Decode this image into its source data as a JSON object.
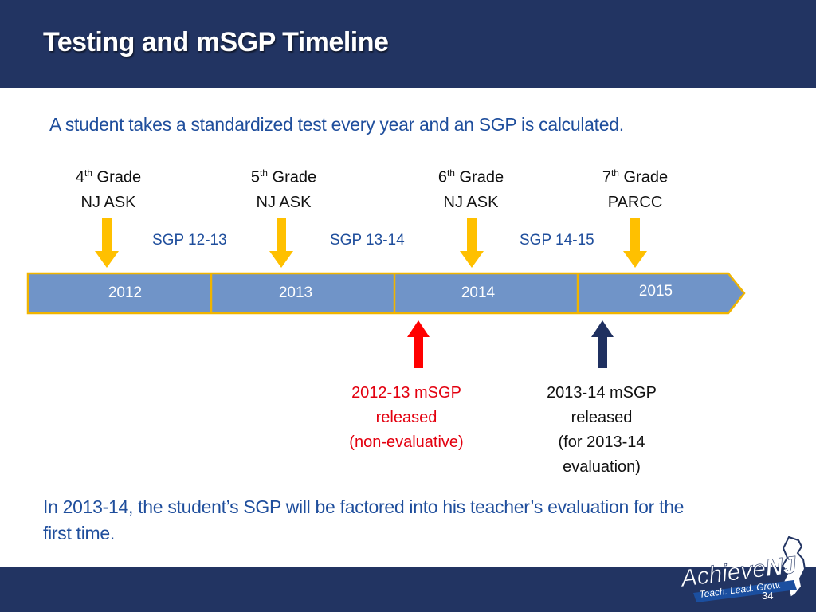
{
  "slide": {
    "title": "Testing and mSGP Timeline",
    "subtitle": "A student takes a standardized test every year and an SGP is calculated.",
    "grades": [
      {
        "num": "4",
        "sup": "th",
        "grade": "Grade",
        "test": "NJ ASK"
      },
      {
        "num": "5",
        "sup": "th",
        "grade": "Grade",
        "test": "NJ ASK"
      },
      {
        "num": "6",
        "sup": "th",
        "grade": "Grade",
        "test": "NJ ASK"
      },
      {
        "num": "7",
        "sup": "th",
        "grade": "Grade",
        "test": "PARCC"
      }
    ],
    "sgp_labels": [
      "SGP 12-13",
      "SGP 13-14",
      "SGP 14-15"
    ],
    "years": [
      "2012",
      "2013",
      "2014",
      "2015"
    ],
    "release_1": {
      "line1": "2012-13 mSGP",
      "line2": "released",
      "line3": "(non-evaluative)"
    },
    "release_2": {
      "line1": "2013-14 mSGP",
      "line2": "released",
      "line3": "(for 2013-14",
      "line4": "evaluation)"
    },
    "bottom_text": "In 2013-14, the student’s SGP will be factored into his teacher’s evaluation for the first time.",
    "logo_main": "Achieve",
    "logo_nj": "NJ",
    "logo_tagline": "Teach. Lead. Grow.",
    "page_number": "34"
  },
  "colors": {
    "header": "#223462",
    "timeline_fill": "#7094c8",
    "timeline_border": "#f0b400",
    "down_arrow": "#ffc000",
    "red_arrow": "#ff0000",
    "navy_arrow": "#1f3060",
    "text_blue": "#1f4e9c",
    "text_red": "#e3000f"
  },
  "icons": [
    "down-arrow-icon",
    "up-arrow-icon",
    "new-jersey-map-icon"
  ]
}
